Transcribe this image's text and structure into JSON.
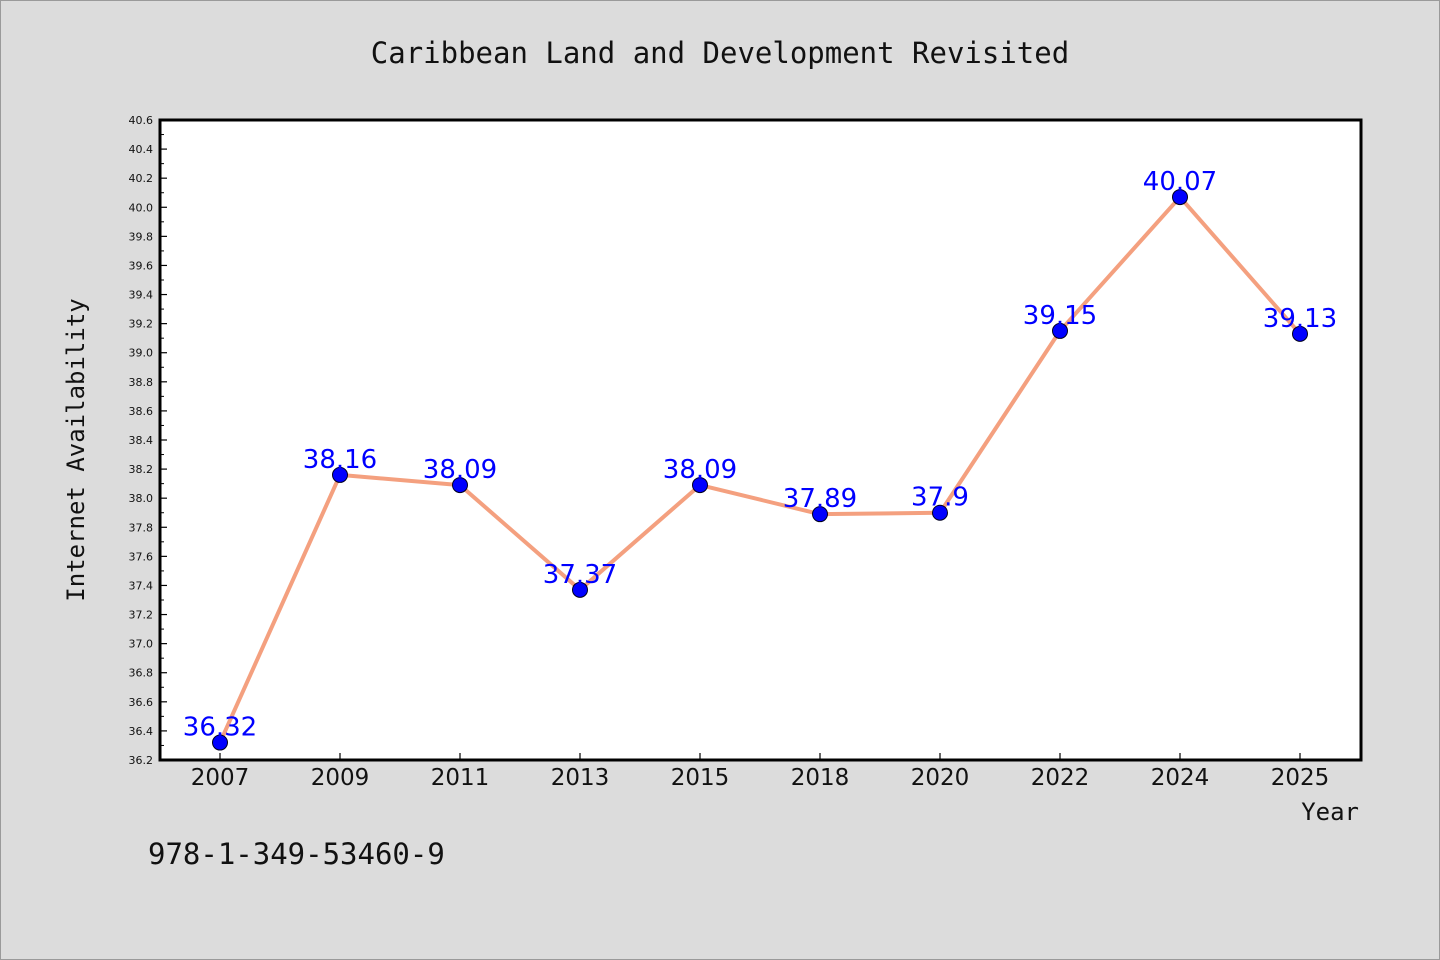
{
  "chart_data": {
    "type": "line",
    "title": "Caribbean Land and Development Revisited",
    "xlabel": "Year",
    "ylabel": "Internet Availability",
    "categories": [
      "2007",
      "2009",
      "2011",
      "2013",
      "2015",
      "2018",
      "2020",
      "2022",
      "2024",
      "2025"
    ],
    "series": [
      {
        "values": [
          36.32,
          38.16,
          38.09,
          37.37,
          38.09,
          37.89,
          37.9,
          39.15,
          40.07,
          39.13
        ],
        "line_color": "#f4a07f",
        "marker_color": "#0000ff"
      }
    ],
    "data_labels": [
      "36.32",
      "38.16",
      "38.09",
      "37.37",
      "38.09",
      "37.89",
      "37.9",
      "39.15",
      "40.07",
      "39.13"
    ],
    "ylim": [
      36.2,
      40.6
    ],
    "yticks": [
      "36.2",
      "36.4",
      "36.6",
      "36.8",
      "37.0",
      "37.2",
      "37.4",
      "37.6",
      "37.8",
      "38.0",
      "38.2",
      "38.4",
      "38.6",
      "38.8",
      "39.0",
      "39.2",
      "39.4",
      "39.6",
      "39.8",
      "40.0",
      "40.2",
      "40.4",
      "40.6"
    ],
    "grid": false,
    "legend": "none"
  },
  "annotation": "978-1-349-53460-9",
  "colors": {
    "background": "#dcdcdc",
    "plot_background": "#ffffff",
    "line": "#f4a07f",
    "marker": "#0000ff",
    "data_label": "#0000ff"
  }
}
